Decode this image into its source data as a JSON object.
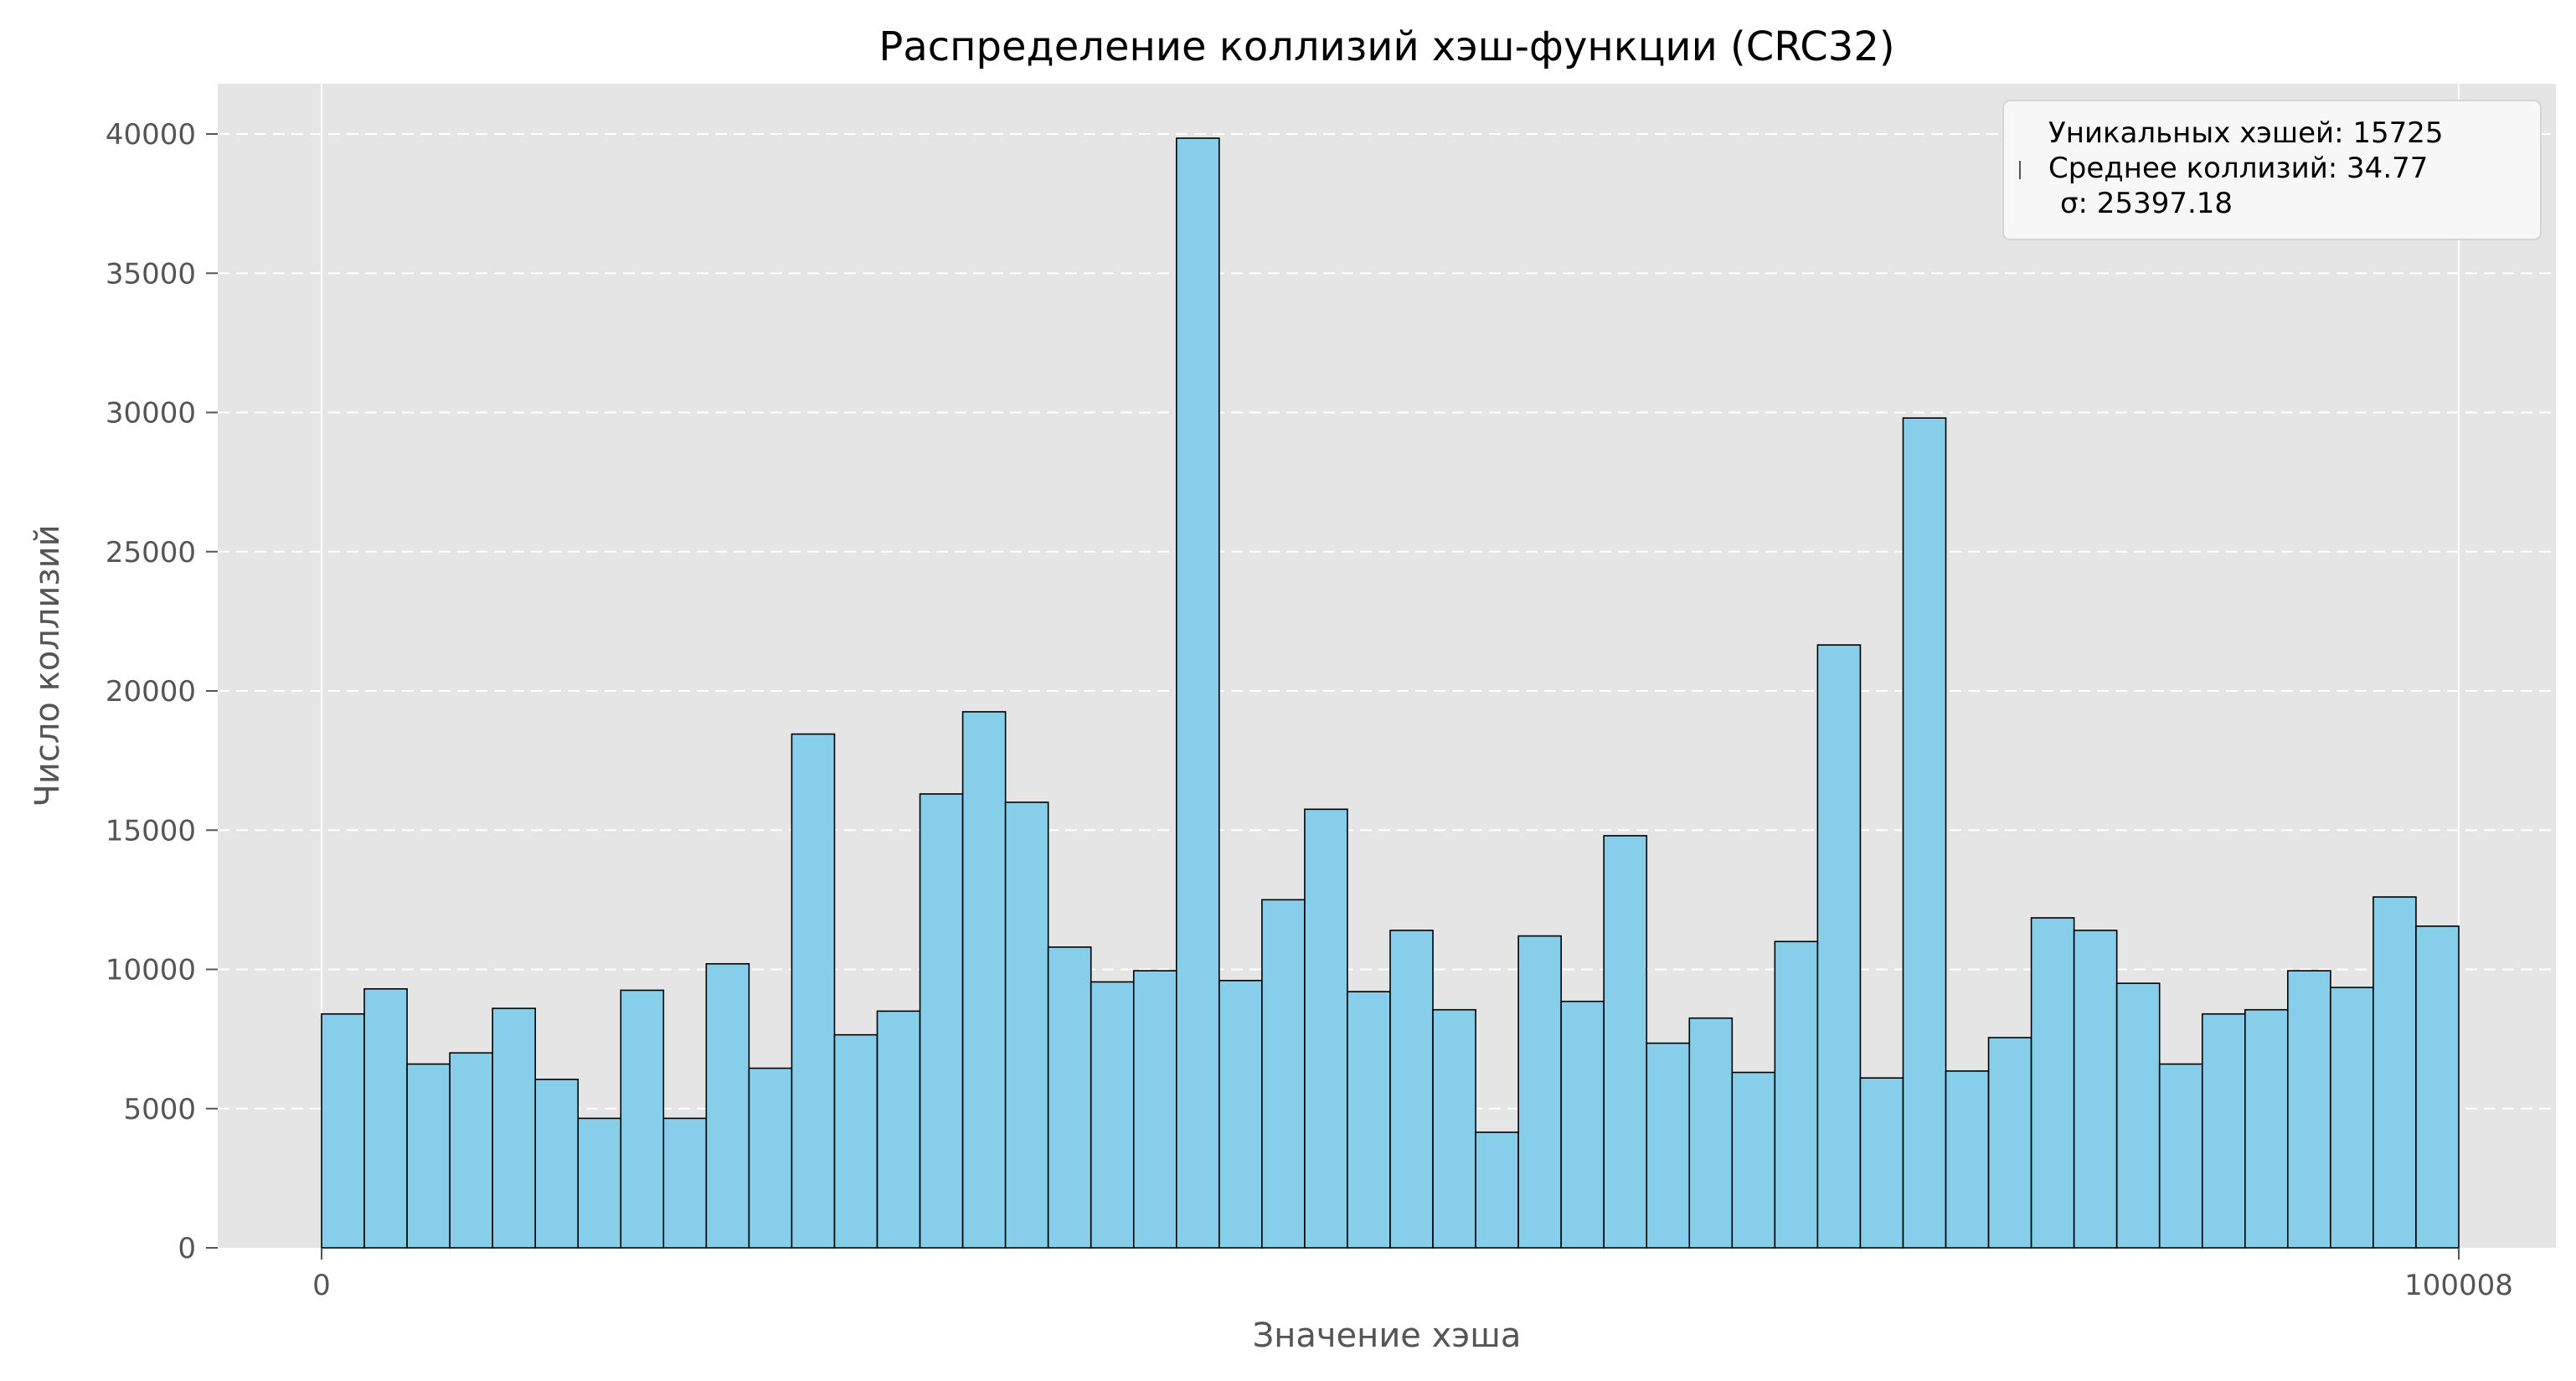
{
  "chart_data": {
    "type": "bar",
    "title": "Распределение коллизий хэш-функции (CRC32)",
    "xlabel": "Значение хэша",
    "ylabel": "Число коллизий",
    "xlim_ticks": [
      "0",
      "100008"
    ],
    "ylim": [
      0,
      42000
    ],
    "yticks": [
      0,
      5000,
      10000,
      15000,
      20000,
      25000,
      30000,
      35000,
      40000
    ],
    "grid": true,
    "legend_placement": "top-right",
    "legend_lines": [
      "Уникальных хэшей: 15725",
      "Среднее коллизий: 34.77",
      "σ: 25397.18"
    ],
    "colors": {
      "bar_fill": "#87ceeb",
      "bar_edge": "#000000",
      "plot_background": "#e5e5e5",
      "grid": "#ffffff"
    },
    "bins": 50,
    "values": [
      8400,
      9300,
      6600,
      7000,
      8600,
      6050,
      4650,
      9250,
      4650,
      10200,
      6450,
      18450,
      7650,
      8500,
      16300,
      19250,
      16000,
      10800,
      9550,
      9950,
      39850,
      9600,
      12500,
      15750,
      9200,
      11400,
      8550,
      4150,
      11200,
      8850,
      14800,
      7350,
      8250,
      6300,
      11000,
      21650,
      6100,
      29800,
      6350,
      7550,
      11850,
      11400,
      9500,
      6600,
      8400,
      8550,
      9950,
      9350,
      12600,
      11550
    ]
  }
}
